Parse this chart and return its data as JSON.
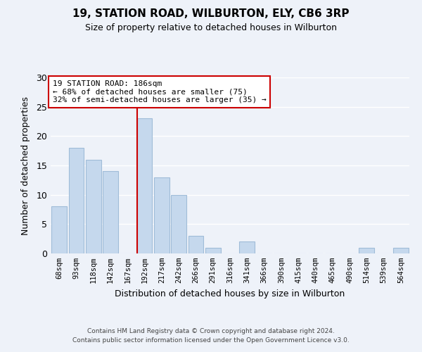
{
  "title1": "19, STATION ROAD, WILBURTON, ELY, CB6 3RP",
  "title2": "Size of property relative to detached houses in Wilburton",
  "xlabel": "Distribution of detached houses by size in Wilburton",
  "ylabel": "Number of detached properties",
  "categories": [
    "68sqm",
    "93sqm",
    "118sqm",
    "142sqm",
    "167sqm",
    "192sqm",
    "217sqm",
    "242sqm",
    "266sqm",
    "291sqm",
    "316sqm",
    "341sqm",
    "366sqm",
    "390sqm",
    "415sqm",
    "440sqm",
    "465sqm",
    "490sqm",
    "514sqm",
    "539sqm",
    "564sqm"
  ],
  "values": [
    8,
    18,
    16,
    14,
    0,
    23,
    13,
    10,
    3,
    1,
    0,
    2,
    0,
    0,
    0,
    0,
    0,
    0,
    1,
    0,
    1
  ],
  "bar_color": "#c5d8ed",
  "bar_edge_color": "#a0bcd8",
  "vline_color": "#cc0000",
  "vline_pos": 4.575,
  "ylim": [
    0,
    30
  ],
  "yticks": [
    0,
    5,
    10,
    15,
    20,
    25,
    30
  ],
  "annotation_title": "19 STATION ROAD: 186sqm",
  "annotation_line1": "← 68% of detached houses are smaller (75)",
  "annotation_line2": "32% of semi-detached houses are larger (35) →",
  "annotation_box_color": "#ffffff",
  "annotation_box_edge": "#cc0000",
  "footer1": "Contains HM Land Registry data © Crown copyright and database right 2024.",
  "footer2": "Contains public sector information licensed under the Open Government Licence v3.0.",
  "background_color": "#eef2f9",
  "grid_color": "#ffffff"
}
